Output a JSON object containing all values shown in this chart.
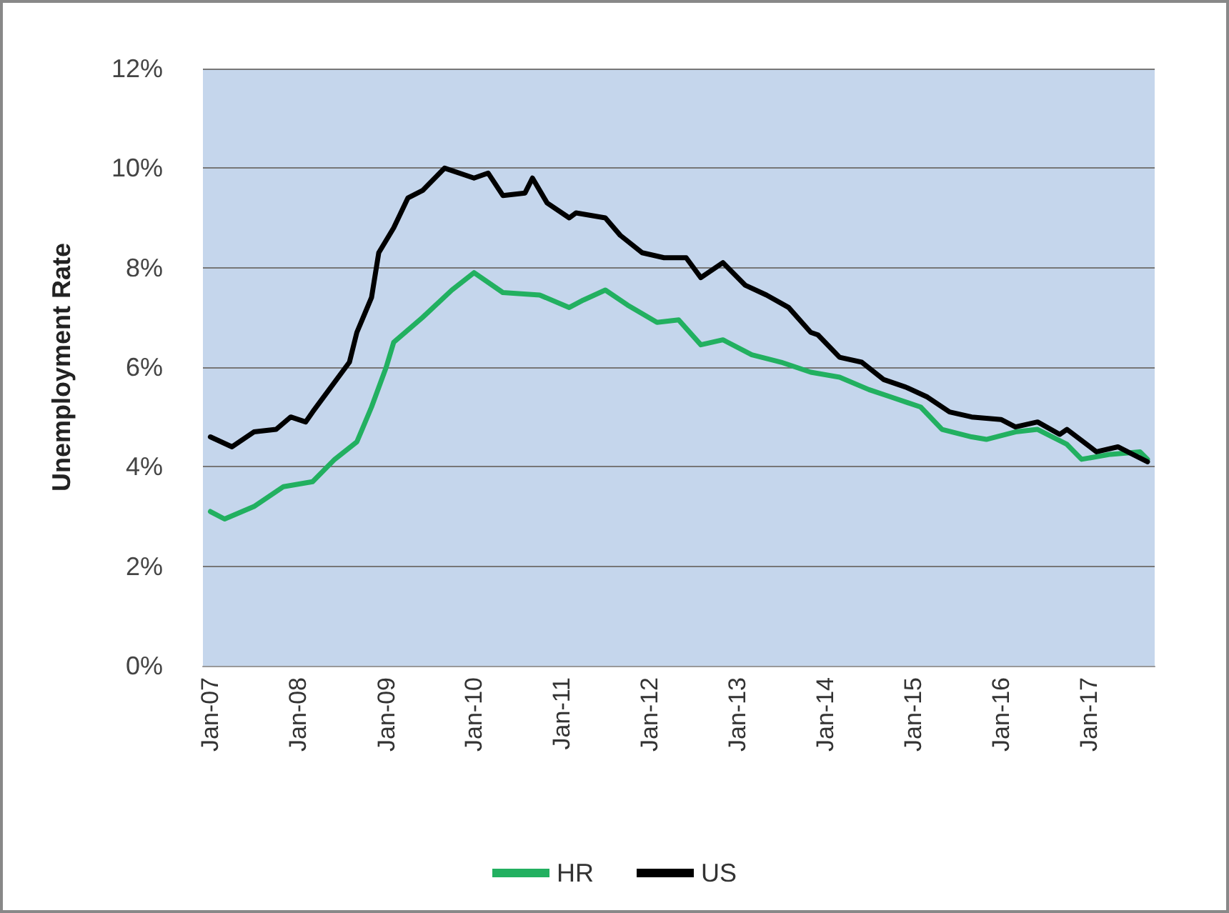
{
  "chart_data": {
    "type": "line",
    "ylabel": "Unemployment Rate",
    "xlim": [
      "2006-12",
      "2017-10"
    ],
    "xticks": [
      {
        "value": "2007-01",
        "label": "Jan-07"
      },
      {
        "value": "2008-01",
        "label": "Jan-08"
      },
      {
        "value": "2009-01",
        "label": "Jan-09"
      },
      {
        "value": "2010-01",
        "label": "Jan-10"
      },
      {
        "value": "2011-01",
        "label": "Jan-11"
      },
      {
        "value": "2012-01",
        "label": "Jan-12"
      },
      {
        "value": "2013-01",
        "label": "Jan-13"
      },
      {
        "value": "2014-01",
        "label": "Jan-14"
      },
      {
        "value": "2015-01",
        "label": "Jan-15"
      },
      {
        "value": "2016-01",
        "label": "Jan-16"
      },
      {
        "value": "2017-01",
        "label": "Jan-17"
      }
    ],
    "ylim": [
      0,
      12
    ],
    "yticks": [
      {
        "value": 0,
        "label": "0%"
      },
      {
        "value": 2,
        "label": "2%"
      },
      {
        "value": 4,
        "label": "4%"
      },
      {
        "value": 6,
        "label": "6%"
      },
      {
        "value": 8,
        "label": "8%"
      },
      {
        "value": 10,
        "label": "10%"
      },
      {
        "value": 12,
        "label": "12%"
      }
    ],
    "grid": "y",
    "legend": "bottom",
    "marker": "none",
    "line_style": "solid",
    "series": [
      {
        "name": "HR",
        "color": "#22b060",
        "x": [
          "2007-01",
          "2007-03",
          "2007-07",
          "2007-11",
          "2008-03",
          "2008-06",
          "2008-09",
          "2008-11",
          "2009-01",
          "2009-02",
          "2009-06",
          "2009-10",
          "2010-01",
          "2010-05",
          "2010-10",
          "2011-02",
          "2011-04",
          "2011-07",
          "2011-10",
          "2012-02",
          "2012-05",
          "2012-08",
          "2012-11",
          "2013-03",
          "2013-07",
          "2013-11",
          "2014-03",
          "2014-07",
          "2014-10",
          "2015-02",
          "2015-05",
          "2015-09",
          "2015-11",
          "2016-03",
          "2016-06",
          "2016-10",
          "2016-12",
          "2017-04",
          "2017-08",
          "2017-09"
        ],
        "values": [
          3.1,
          2.95,
          3.2,
          3.6,
          3.7,
          4.15,
          4.5,
          5.2,
          6.0,
          6.5,
          7.0,
          7.55,
          7.9,
          7.5,
          7.45,
          7.2,
          7.35,
          7.55,
          7.25,
          6.9,
          6.95,
          6.45,
          6.55,
          6.25,
          6.1,
          5.9,
          5.8,
          5.55,
          5.4,
          5.2,
          4.75,
          4.6,
          4.55,
          4.7,
          4.75,
          4.45,
          4.15,
          4.25,
          4.3,
          4.15
        ]
      },
      {
        "name": "US",
        "color": "#000000",
        "x": [
          "2007-01",
          "2007-04",
          "2007-07",
          "2007-10",
          "2007-12",
          "2008-02",
          "2008-03",
          "2008-05",
          "2008-08",
          "2008-09",
          "2008-11",
          "2008-12",
          "2009-02",
          "2009-04",
          "2009-06",
          "2009-09",
          "2010-01",
          "2010-03",
          "2010-05",
          "2010-08",
          "2010-09",
          "2010-11",
          "2011-02",
          "2011-03",
          "2011-07",
          "2011-09",
          "2011-12",
          "2012-03",
          "2012-06",
          "2012-08",
          "2012-11",
          "2013-02",
          "2013-05",
          "2013-08",
          "2013-11",
          "2013-12",
          "2014-03",
          "2014-06",
          "2014-09",
          "2014-12",
          "2015-03",
          "2015-06",
          "2015-09",
          "2016-01",
          "2016-03",
          "2016-06",
          "2016-09",
          "2016-10",
          "2017-02",
          "2017-05",
          "2017-07",
          "2017-09"
        ],
        "values": [
          4.6,
          4.4,
          4.7,
          4.75,
          5.0,
          4.9,
          5.1,
          5.5,
          6.1,
          6.7,
          7.4,
          8.3,
          8.8,
          9.4,
          9.55,
          10.0,
          9.8,
          9.9,
          9.45,
          9.5,
          9.8,
          9.3,
          9.0,
          9.1,
          9.0,
          8.65,
          8.3,
          8.2,
          8.2,
          7.8,
          8.1,
          7.65,
          7.45,
          7.2,
          6.7,
          6.65,
          6.2,
          6.1,
          5.75,
          5.6,
          5.4,
          5.1,
          5.0,
          4.95,
          4.8,
          4.9,
          4.65,
          4.75,
          4.3,
          4.4,
          4.25,
          4.1
        ]
      }
    ]
  }
}
